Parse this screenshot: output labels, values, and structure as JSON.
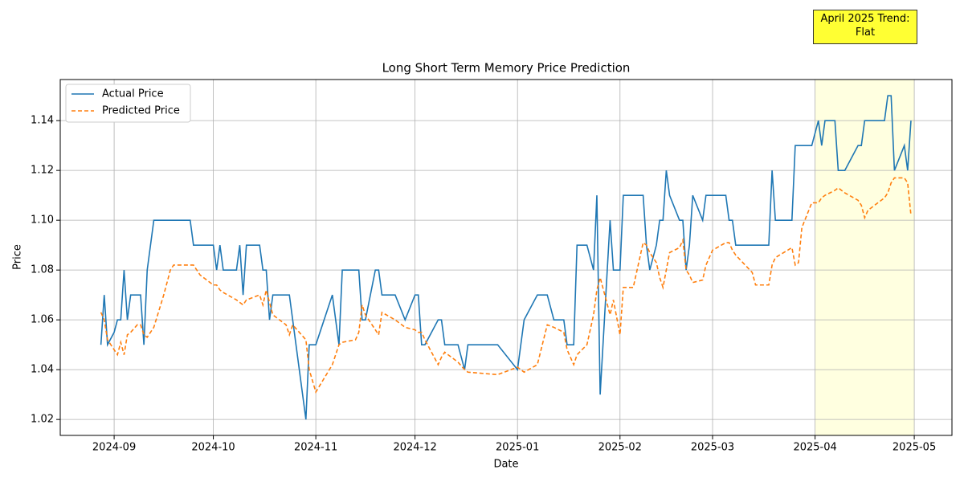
{
  "chart_data": {
    "type": "line",
    "title": "Long Short Term Memory Price Prediction",
    "x_label": "Date",
    "y_label": "Price",
    "annotation": "April 2025 Trend:\nFlat",
    "highlight_span": [
      212,
      242
    ],
    "highlight_color": "#ffffe0",
    "grid": true,
    "legend": "upper left",
    "xlim": [
      -16.3,
      253.4
    ],
    "ylim": [
      1.0136,
      1.1565
    ],
    "xticks": [
      {
        "value": 0,
        "label": "2024-09"
      },
      {
        "value": 30,
        "label": "2024-10"
      },
      {
        "value": 61,
        "label": "2024-11"
      },
      {
        "value": 91,
        "label": "2024-12"
      },
      {
        "value": 122,
        "label": "2025-01"
      },
      {
        "value": 153,
        "label": "2025-02"
      },
      {
        "value": 181,
        "label": "2025-03"
      },
      {
        "value": 212,
        "label": "2025-04"
      },
      {
        "value": 242,
        "label": "2025-05"
      }
    ],
    "yticks": [
      1.02,
      1.04,
      1.06,
      1.08,
      {
        "value": 1.1,
        "label": "1.10"
      },
      1.12,
      1.14
    ],
    "x": [
      -4,
      -3,
      -2,
      0,
      1,
      2,
      3,
      4,
      5,
      7,
      8,
      9,
      10,
      12,
      15,
      17,
      18,
      22,
      23,
      24,
      26,
      30,
      31,
      32,
      33,
      37,
      38,
      39,
      40,
      44,
      45,
      46,
      47,
      48,
      52,
      53,
      54,
      58,
      59,
      61,
      66,
      68,
      69,
      73,
      74,
      75,
      76,
      79,
      80,
      81,
      85,
      88,
      91,
      92,
      93,
      94,
      98,
      99,
      100,
      104,
      106,
      107,
      116,
      122,
      124,
      128,
      131,
      133,
      136,
      137,
      139,
      140,
      143,
      145,
      146,
      147,
      150,
      151,
      153,
      154,
      157,
      160,
      161,
      162,
      164,
      165,
      166,
      167,
      168,
      171,
      172,
      173,
      174,
      175,
      178,
      179,
      181,
      185,
      186,
      187,
      188,
      193,
      194,
      198,
      199,
      200,
      205,
      206,
      207,
      208,
      211,
      213,
      214,
      215,
      218,
      219,
      221,
      225,
      226,
      227,
      228,
      233,
      234,
      235,
      236,
      239,
      240,
      241
    ],
    "series": [
      {
        "name": "Actual Price",
        "color": "#1f77b4",
        "dash": false,
        "values": [
          1.05,
          1.07,
          1.05,
          1.055,
          1.06,
          1.06,
          1.08,
          1.06,
          1.07,
          1.07,
          1.07,
          1.05,
          1.08,
          1.1,
          1.1,
          1.1,
          1.1,
          1.1,
          1.1,
          1.09,
          1.09,
          1.09,
          1.08,
          1.09,
          1.08,
          1.08,
          1.09,
          1.07,
          1.09,
          1.09,
          1.08,
          1.08,
          1.06,
          1.07,
          1.07,
          1.07,
          1.06,
          1.02,
          1.05,
          1.05,
          1.07,
          1.05,
          1.08,
          1.08,
          1.08,
          1.06,
          1.06,
          1.08,
          1.08,
          1.07,
          1.07,
          1.06,
          1.07,
          1.07,
          1.05,
          1.05,
          1.06,
          1.06,
          1.05,
          1.05,
          1.04,
          1.05,
          1.05,
          1.04,
          1.06,
          1.07,
          1.07,
          1.06,
          1.06,
          1.05,
          1.05,
          1.09,
          1.09,
          1.08,
          1.11,
          1.03,
          1.1,
          1.08,
          1.08,
          1.11,
          1.11,
          1.11,
          1.09,
          1.08,
          1.09,
          1.1,
          1.1,
          1.12,
          1.11,
          1.1,
          1.1,
          1.08,
          1.09,
          1.11,
          1.1,
          1.11,
          1.11,
          1.11,
          1.1,
          1.1,
          1.09,
          1.09,
          1.09,
          1.09,
          1.12,
          1.1,
          1.1,
          1.13,
          1.13,
          1.13,
          1.13,
          1.14,
          1.13,
          1.14,
          1.14,
          1.12,
          1.12,
          1.13,
          1.13,
          1.14,
          1.14,
          1.14,
          1.15,
          1.15,
          1.12,
          1.13,
          1.12,
          1.14
        ]
      },
      {
        "name": "Predicted Price",
        "color": "#ff7f0e",
        "dash": true,
        "values": [
          1.063,
          1.06,
          1.052,
          1.048,
          1.046,
          1.051,
          1.046,
          1.054,
          1.055,
          1.058,
          1.058,
          1.054,
          1.053,
          1.057,
          1.07,
          1.08,
          1.082,
          1.082,
          1.082,
          1.082,
          1.078,
          1.074,
          1.074,
          1.072,
          1.071,
          1.068,
          1.067,
          1.066,
          1.068,
          1.07,
          1.066,
          1.072,
          1.067,
          1.062,
          1.058,
          1.054,
          1.058,
          1.052,
          1.04,
          1.031,
          1.042,
          1.05,
          1.051,
          1.052,
          1.055,
          1.066,
          1.062,
          1.056,
          1.054,
          1.063,
          1.06,
          1.057,
          1.056,
          1.055,
          1.055,
          1.052,
          1.042,
          1.045,
          1.047,
          1.043,
          1.04,
          1.039,
          1.038,
          1.041,
          1.039,
          1.042,
          1.058,
          1.057,
          1.055,
          1.048,
          1.042,
          1.046,
          1.05,
          1.062,
          1.072,
          1.077,
          1.062,
          1.068,
          1.054,
          1.073,
          1.073,
          1.091,
          1.09,
          1.087,
          1.083,
          1.077,
          1.073,
          1.08,
          1.087,
          1.089,
          1.092,
          1.08,
          1.078,
          1.075,
          1.076,
          1.082,
          1.088,
          1.091,
          1.091,
          1.088,
          1.086,
          1.079,
          1.074,
          1.074,
          1.082,
          1.085,
          1.089,
          1.082,
          1.083,
          1.097,
          1.107,
          1.107,
          1.109,
          1.11,
          1.112,
          1.113,
          1.111,
          1.108,
          1.106,
          1.101,
          1.104,
          1.109,
          1.111,
          1.115,
          1.117,
          1.117,
          1.115,
          1.102
        ]
      }
    ]
  }
}
